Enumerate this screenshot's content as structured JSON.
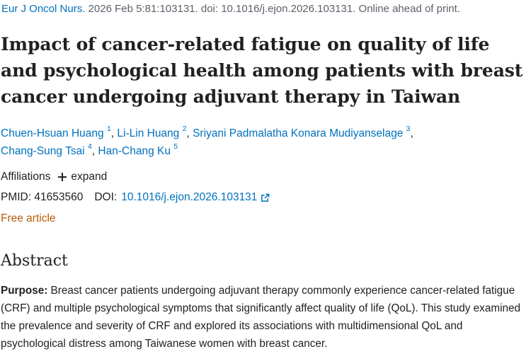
{
  "citation": {
    "journal": "Eur J Oncol Nurs.",
    "details": "2026 Feb 5:81:103131. doi: 10.1016/j.ejon.2026.103131. Online ahead of print."
  },
  "title": "Impact of cancer-related fatigue on quality of life and psychological health among patients with breast cancer undergoing adjuvant therapy in Taiwan",
  "authors": [
    {
      "name": "Chuen-Hsuan Huang",
      "aff": "1"
    },
    {
      "name": "Li-Lin Huang",
      "aff": "2"
    },
    {
      "name": "Sriyani Padmalatha Konara Mudiyanselage",
      "aff": "3"
    },
    {
      "name": "Chang-Sung Tsai",
      "aff": "4"
    },
    {
      "name": "Han-Chang Ku",
      "aff": "5"
    }
  ],
  "affiliations": {
    "label": "Affiliations",
    "expand_label": "expand"
  },
  "identifiers": {
    "pmid_label": "PMID:",
    "pmid": "41653560",
    "doi_label": "DOI:",
    "doi": "10.1016/j.ejon.2026.103131"
  },
  "free_article": "Free article",
  "abstract": {
    "heading": "Abstract",
    "purpose_label": "Purpose:",
    "purpose_text": "Breast cancer patients undergoing adjuvant therapy commonly experience cancer-related fatigue (CRF) and multiple psychological symptoms that significantly affect quality of life (QoL). This study examined the prevalence and severity of CRF and explored its associations with multidimensional QoL and psychological distress among Taiwanese women with breast cancer."
  },
  "icons": {
    "expand": "plus-icon",
    "external_link": "external-link-icon"
  },
  "colors": {
    "link": "#0071bc",
    "free_article": "#b45d06",
    "text": "#212121",
    "meta": "#5b616b"
  }
}
